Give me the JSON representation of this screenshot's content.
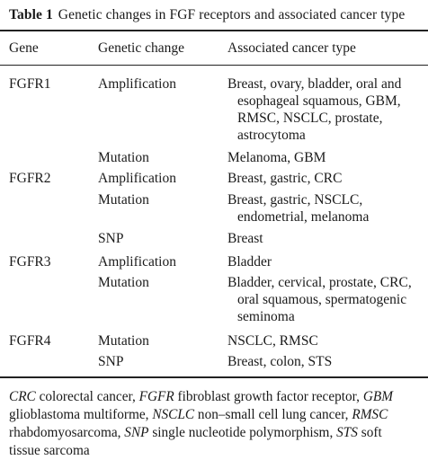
{
  "caption": {
    "label": "Table 1",
    "text": "Genetic changes in FGF receptors and associated cancer type"
  },
  "columns": {
    "gene": "Gene",
    "change": "Genetic change",
    "cancer": "Associated cancer type"
  },
  "rows": [
    {
      "gene": "FGFR1",
      "change": "Amplification",
      "cancer_lines": [
        "Breast, ovary, bladder, oral and",
        "esophageal squamous, GBM,",
        "RMSC, NSCLC, prostate,",
        "astrocytoma"
      ]
    },
    {
      "gene": "",
      "change": "Mutation",
      "cancer_lines": [
        "Melanoma, GBM"
      ]
    },
    {
      "gene": "FGFR2",
      "change": "Amplification",
      "cancer_lines": [
        "Breast, gastric, CRC"
      ]
    },
    {
      "gene": "",
      "change": "Mutation",
      "cancer_lines": [
        "Breast, gastric, NSCLC,",
        "endometrial, melanoma"
      ]
    },
    {
      "gene": "",
      "change": "SNP",
      "cancer_lines": [
        "Breast"
      ]
    },
    {
      "gene": "FGFR3",
      "change": "Amplification",
      "cancer_lines": [
        "Bladder"
      ]
    },
    {
      "gene": "",
      "change": "Mutation",
      "cancer_lines": [
        "Bladder, cervical, prostate, CRC,",
        "oral squamous, spermatogenic",
        "seminoma"
      ]
    },
    {
      "gene": "FGFR4",
      "change": "Mutation",
      "cancer_lines": [
        "NSCLC, RMSC"
      ]
    },
    {
      "gene": "",
      "change": "SNP",
      "cancer_lines": [
        "Breast, colon, STS"
      ]
    }
  ],
  "footnote": {
    "lines": [
      [
        {
          "abbr": "CRC",
          "text": " colorectal cancer, "
        },
        {
          "abbr": "FGFR",
          "text": " fibroblast growth factor receptor, "
        },
        {
          "abbr": "GBM",
          "text": ""
        }
      ],
      [
        {
          "abbr": "",
          "text": "glioblastoma multiforme, "
        },
        {
          "abbr": "NSCLC",
          "text": " non–small cell lung cancer, "
        },
        {
          "abbr": "RMSC",
          "text": ""
        }
      ],
      [
        {
          "abbr": "",
          "text": "rhabdomyosarcoma, "
        },
        {
          "abbr": "SNP",
          "text": " single nucleotide polymorphism, "
        },
        {
          "abbr": "STS",
          "text": " soft"
        }
      ],
      [
        {
          "abbr": "",
          "text": "tissue sarcoma"
        }
      ]
    ]
  }
}
